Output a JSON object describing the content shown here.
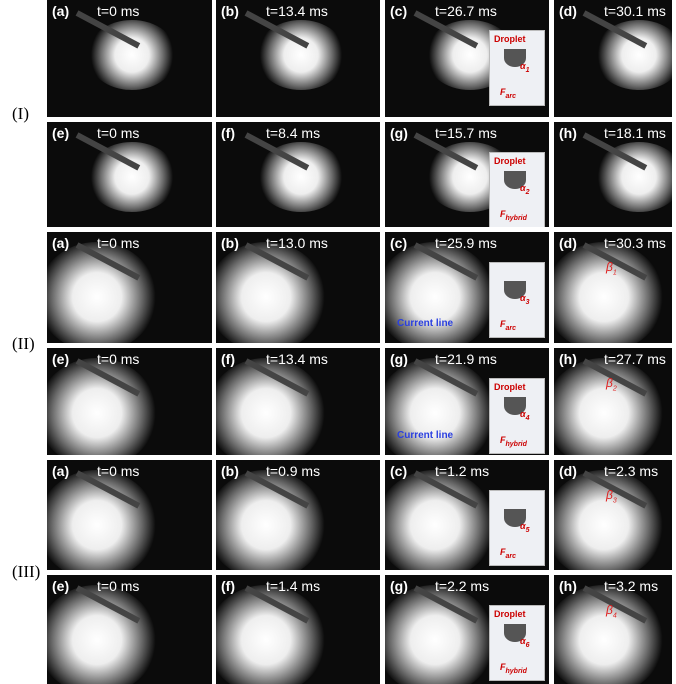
{
  "groups": [
    {
      "label": "(I)",
      "rows": [
        {
          "panels": [
            {
              "id": "(a)",
              "time": "t=0 ms"
            },
            {
              "id": "(b)",
              "time": "t=13.4 ms"
            },
            {
              "id": "(c)",
              "time": "t=26.7 ms",
              "inset": {
                "title": "Droplet",
                "angle": {
                  "symbol": "α",
                  "sub": "1"
                },
                "force": {
                  "symbol": "F",
                  "sub": "arc"
                }
              }
            },
            {
              "id": "(d)",
              "time": "t=30.1 ms"
            }
          ]
        },
        {
          "panels": [
            {
              "id": "(e)",
              "time": "t=0 ms"
            },
            {
              "id": "(f)",
              "time": "t=8.4 ms"
            },
            {
              "id": "(g)",
              "time": "t=15.7 ms",
              "inset": {
                "title": "Droplet",
                "angle": {
                  "symbol": "α",
                  "sub": "2"
                },
                "force": {
                  "symbol": "F",
                  "sub": "hybrid"
                }
              }
            },
            {
              "id": "(h)",
              "time": "t=18.1 ms"
            }
          ]
        }
      ]
    },
    {
      "label": "(II)",
      "rows": [
        {
          "panels": [
            {
              "id": "(a)",
              "time": "t=0 ms"
            },
            {
              "id": "(b)",
              "time": "t=13.0 ms"
            },
            {
              "id": "(c)",
              "time": "t=25.9 ms",
              "inset": {
                "angle": {
                  "symbol": "α",
                  "sub": "3"
                },
                "force": {
                  "symbol": "F",
                  "sub": "arc"
                }
              },
              "current_line": "Current line"
            },
            {
              "id": "(d)",
              "time": "t=30.3 ms",
              "beta": {
                "symbol": "β",
                "sub": "1"
              }
            }
          ]
        },
        {
          "panels": [
            {
              "id": "(e)",
              "time": "t=0 ms"
            },
            {
              "id": "(f)",
              "time": "t=13.4 ms"
            },
            {
              "id": "(g)",
              "time": "t=21.9 ms",
              "inset": {
                "title": "Droplet",
                "angle": {
                  "symbol": "α",
                  "sub": "4"
                },
                "force": {
                  "symbol": "F",
                  "sub": "hybrid"
                }
              },
              "current_line": "Current line"
            },
            {
              "id": "(h)",
              "time": "t=27.7 ms",
              "beta": {
                "symbol": "β",
                "sub": "2"
              }
            }
          ]
        }
      ]
    },
    {
      "label": "(III)",
      "rows": [
        {
          "panels": [
            {
              "id": "(a)",
              "time": "t=0 ms"
            },
            {
              "id": "(b)",
              "time": "t=0.9 ms"
            },
            {
              "id": "(c)",
              "time": "t=1.2 ms",
              "inset": {
                "angle": {
                  "symbol": "α",
                  "sub": "5"
                },
                "force": {
                  "symbol": "F",
                  "sub": "arc"
                }
              }
            },
            {
              "id": "(d)",
              "time": "t=2.3 ms",
              "beta": {
                "symbol": "β",
                "sub": "3"
              }
            }
          ]
        },
        {
          "panels": [
            {
              "id": "(e)",
              "time": "t=0 ms"
            },
            {
              "id": "(f)",
              "time": "t=1.4 ms"
            },
            {
              "id": "(g)",
              "time": "t=2.2 ms",
              "inset": {
                "title": "Droplet",
                "angle": {
                  "symbol": "α",
                  "sub": "6"
                },
                "force": {
                  "symbol": "F",
                  "sub": "hybrid"
                }
              }
            },
            {
              "id": "(h)",
              "time": "t=3.2 ms",
              "beta": {
                "symbol": "β",
                "sub": "4"
              }
            }
          ]
        }
      ]
    }
  ]
}
